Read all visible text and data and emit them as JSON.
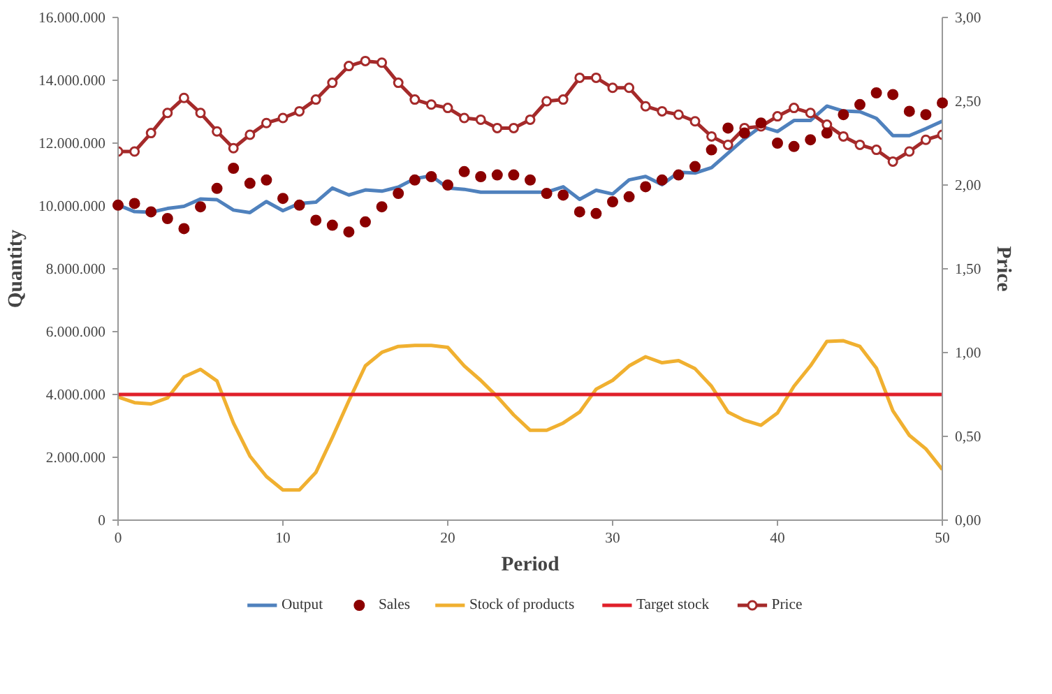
{
  "chart_data": {
    "type": "line",
    "xlabel": "Period",
    "ylabel": "Quantity",
    "y2label": "Price",
    "x": [
      0,
      1,
      2,
      3,
      4,
      5,
      6,
      7,
      8,
      9,
      10,
      11,
      12,
      13,
      14,
      15,
      16,
      17,
      18,
      19,
      20,
      21,
      22,
      23,
      24,
      25,
      26,
      27,
      28,
      29,
      30,
      31,
      32,
      33,
      34,
      35,
      36,
      37,
      38,
      39,
      40,
      41,
      42,
      43,
      44,
      45,
      46,
      47,
      48,
      49,
      50
    ],
    "xlim": [
      0,
      50
    ],
    "xticks": [
      0,
      10,
      20,
      30,
      40,
      50
    ],
    "ylim": [
      0,
      16000000
    ],
    "yticks": [
      {
        "value": 0,
        "label": "0"
      },
      {
        "value": 2000000,
        "label": "2.000.000"
      },
      {
        "value": 4000000,
        "label": "4.000.000"
      },
      {
        "value": 6000000,
        "label": "6.000.000"
      },
      {
        "value": 8000000,
        "label": "8.000.000"
      },
      {
        "value": 10000000,
        "label": "10.000.000"
      },
      {
        "value": 12000000,
        "label": "12.000.000"
      },
      {
        "value": 14000000,
        "label": "14.000.000"
      },
      {
        "value": 16000000,
        "label": "16.000.000"
      }
    ],
    "y2lim": [
      0,
      3
    ],
    "y2ticks": [
      {
        "value": 0,
        "label": "0,00"
      },
      {
        "value": 0.5,
        "label": "0,50"
      },
      {
        "value": 1,
        "label": "1,00"
      },
      {
        "value": 1.5,
        "label": "1,50"
      },
      {
        "value": 2,
        "label": "2,00"
      },
      {
        "value": 2.5,
        "label": "2,50"
      },
      {
        "value": 3,
        "label": "3,00"
      }
    ],
    "grid": false,
    "legend": "bottom",
    "series": [
      {
        "name": "Output",
        "color": "#4f81bd",
        "values": [
          10030000,
          9820000,
          9800000,
          9920000,
          9990000,
          10220000,
          10200000,
          9870000,
          9790000,
          10140000,
          9850000,
          10080000,
          10120000,
          10570000,
          10350000,
          10510000,
          10470000,
          10600000,
          10870000,
          10960000,
          10570000,
          10530000,
          10440000,
          10440000,
          10440000,
          10440000,
          10440000,
          10610000,
          10210000,
          10500000,
          10380000,
          10830000,
          10940000,
          10680000,
          11070000,
          11050000,
          11220000,
          11680000,
          12140000,
          12530000,
          12370000,
          12720000,
          12720000,
          13180000,
          13020000,
          13000000,
          12790000,
          12240000,
          12240000,
          12460000,
          12700000
        ]
      },
      {
        "name": "Sales",
        "type": "scatter",
        "marker": "circle",
        "axis": "y2",
        "color": "#8b0000",
        "values": [
          1.88,
          1.89,
          1.84,
          1.8,
          1.74,
          1.87,
          1.98,
          2.1,
          2.01,
          2.03,
          1.92,
          1.88,
          1.79,
          1.76,
          1.72,
          1.78,
          1.87,
          1.95,
          2.03,
          2.05,
          2.0,
          2.08,
          2.05,
          2.06,
          2.06,
          2.03,
          1.95,
          1.94,
          1.84,
          1.83,
          1.9,
          1.93,
          1.99,
          2.03,
          2.06,
          2.11,
          2.21,
          2.34,
          2.31,
          2.37,
          2.25,
          2.23,
          2.27,
          2.31,
          2.42,
          2.48,
          2.55,
          2.54,
          2.44,
          2.42,
          2.49
        ]
      },
      {
        "name": "Stock of products",
        "color": "#f0b030",
        "values": [
          3920000,
          3740000,
          3700000,
          3890000,
          4560000,
          4800000,
          4430000,
          3090000,
          2040000,
          1390000,
          960000,
          960000,
          1520000,
          2630000,
          3800000,
          4910000,
          5340000,
          5530000,
          5560000,
          5560000,
          5500000,
          4910000,
          4450000,
          3930000,
          3350000,
          2860000,
          2860000,
          3090000,
          3440000,
          4170000,
          4450000,
          4910000,
          5200000,
          5010000,
          5080000,
          4820000,
          4260000,
          3440000,
          3180000,
          3020000,
          3410000,
          4260000,
          4910000,
          5690000,
          5710000,
          5530000,
          4840000,
          3480000,
          2700000,
          2270000,
          1610000
        ]
      },
      {
        "name": "Target stock",
        "color": "#e0202a",
        "x": [
          0,
          50
        ],
        "values": [
          4000000,
          4000000
        ]
      },
      {
        "name": "Price",
        "marker": "circle",
        "axis": "y2",
        "color": "#a52a2a",
        "values": [
          2.2,
          2.2,
          2.31,
          2.43,
          2.52,
          2.43,
          2.32,
          2.22,
          2.3,
          2.37,
          2.4,
          2.44,
          2.51,
          2.61,
          2.71,
          2.74,
          2.73,
          2.61,
          2.51,
          2.48,
          2.46,
          2.4,
          2.39,
          2.34,
          2.34,
          2.39,
          2.5,
          2.51,
          2.64,
          2.64,
          2.58,
          2.58,
          2.47,
          2.44,
          2.42,
          2.38,
          2.29,
          2.24,
          2.34,
          2.35,
          2.41,
          2.46,
          2.43,
          2.36,
          2.29,
          2.24,
          2.21,
          2.14,
          2.2,
          2.27,
          2.3
        ]
      }
    ]
  }
}
